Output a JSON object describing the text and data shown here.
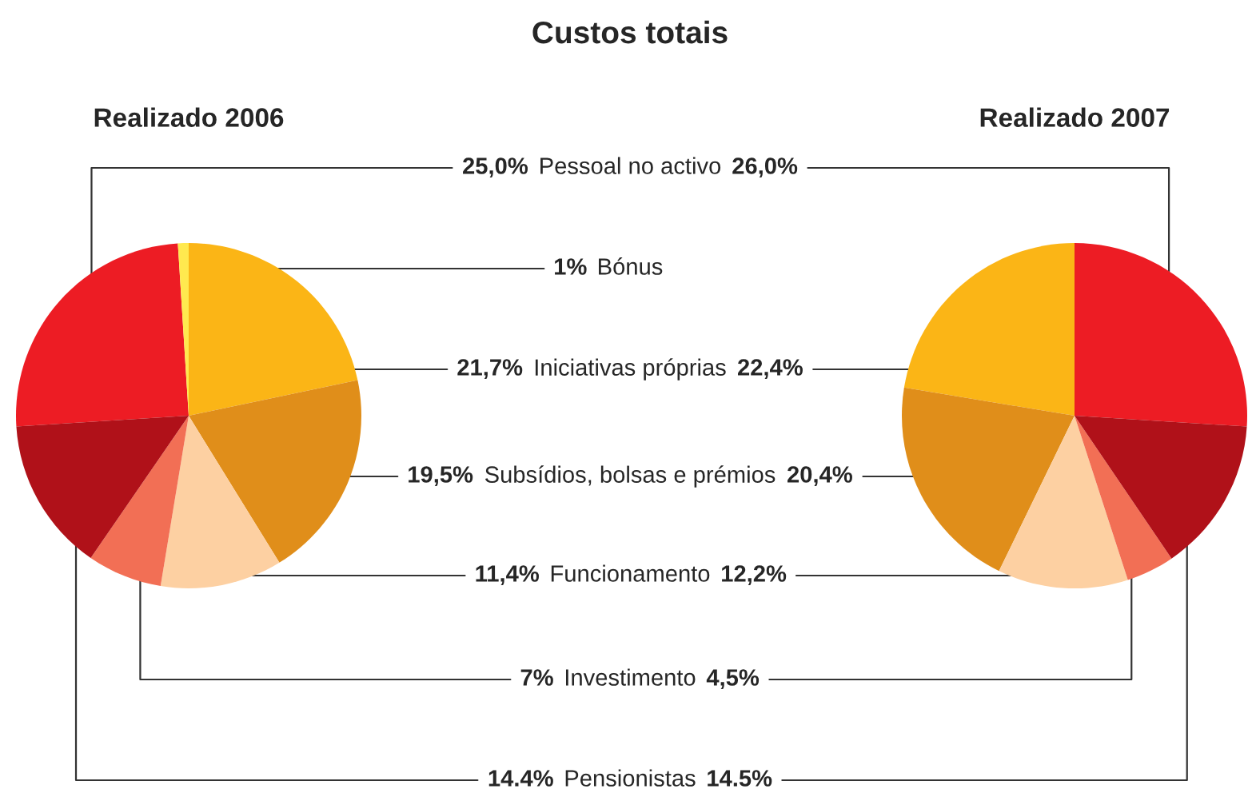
{
  "chart_data": [
    {
      "type": "pie",
      "title": "Custos totais",
      "subtitle": "Realizado 2006",
      "categories": [
        "Pessoal no activo",
        "Bónus",
        "Iniciativas próprias",
        "Subsídios, bolsas e prémios",
        "Funcionamento",
        "Investimento",
        "Pensionistas"
      ],
      "values": [
        25.0,
        1,
        21.7,
        19.5,
        11.4,
        7,
        14.4
      ],
      "value_labels": [
        "25,0%",
        "1%",
        "21,7%",
        "19,5%",
        "11,4%",
        "7%",
        "14.4%"
      ],
      "colors": [
        "#ed1c24",
        "#ffe94f",
        "#fbb516",
        "#e08e1a",
        "#fdd0a2",
        "#f26f55",
        "#b01119"
      ]
    },
    {
      "type": "pie",
      "subtitle": "Realizado 2007",
      "categories": [
        null,
        null,
        null,
        null,
        null,
        null,
        null
      ],
      "values": [
        26.0,
        null,
        22.4,
        20.4,
        12.2,
        4.5,
        14.5
      ],
      "value_labels": [
        "26,0%",
        null,
        "22,4%",
        "20,4%",
        "12,2%",
        "4,5%",
        "14.5%"
      ],
      "colors": [
        "#ed1c24",
        "#ffe94f",
        "#fbb516",
        "#e08e1a",
        "#fdd0a2",
        "#f26f55",
        "#b01119"
      ]
    }
  ]
}
